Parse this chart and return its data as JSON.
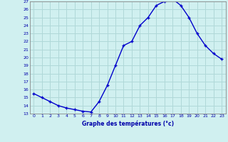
{
  "hours": [
    0,
    1,
    2,
    3,
    4,
    5,
    6,
    7,
    8,
    9,
    10,
    11,
    12,
    13,
    14,
    15,
    16,
    17,
    18,
    19,
    20,
    21,
    22,
    23
  ],
  "temperatures": [
    15.5,
    15.0,
    14.5,
    14.0,
    13.7,
    13.5,
    13.3,
    13.2,
    14.5,
    16.5,
    19.0,
    21.5,
    22.0,
    24.0,
    25.0,
    26.5,
    27.0,
    27.3,
    26.5,
    25.0,
    23.0,
    21.5,
    20.5,
    19.8
  ],
  "line_color": "#0000cc",
  "marker": "+",
  "bg_color": "#d0f0f0",
  "grid_color": "#b0d8d8",
  "xlabel": "Graphe des températures (°c)",
  "ylim": [
    13,
    27
  ],
  "xlim": [
    -0.5,
    23.5
  ],
  "yticks": [
    13,
    14,
    15,
    16,
    17,
    18,
    19,
    20,
    21,
    22,
    23,
    24,
    25,
    26,
    27
  ],
  "xticks": [
    0,
    1,
    2,
    3,
    4,
    5,
    6,
    7,
    8,
    9,
    10,
    11,
    12,
    13,
    14,
    15,
    16,
    17,
    18,
    19,
    20,
    21,
    22,
    23
  ],
  "axis_color": "#0000aa",
  "tick_color": "#0000aa",
  "label_color": "#0000aa",
  "spine_color": "#888888"
}
